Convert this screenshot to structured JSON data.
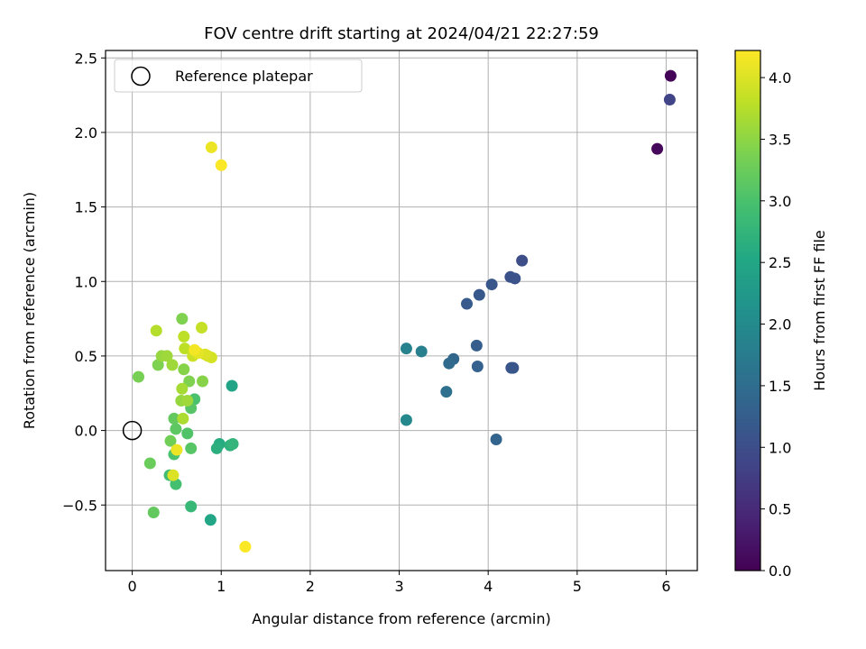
{
  "chart_data": {
    "type": "scatter",
    "title": "FOV centre drift starting at 2024/04/21 22:27:59",
    "xlabel": "Angular distance from reference (arcmin)",
    "ylabel": "Rotation from reference (arcmin)",
    "xlim": [
      -0.3,
      6.35
    ],
    "ylim": [
      -0.94,
      2.55
    ],
    "xticks": [
      0,
      1,
      2,
      3,
      4,
      5,
      6
    ],
    "xtick_labels": [
      "0",
      "1",
      "2",
      "3",
      "4",
      "5",
      "6"
    ],
    "yticks": [
      -0.5,
      0.0,
      0.5,
      1.0,
      1.5,
      2.0,
      2.5
    ],
    "ytick_labels": [
      "−0.5",
      "0.0",
      "0.5",
      "1.0",
      "1.5",
      "2.0",
      "2.5"
    ],
    "grid": true,
    "legend": {
      "placement": "top-left",
      "entries": [
        "Reference platepar"
      ]
    },
    "reference_point": {
      "x": 0,
      "y": 0
    },
    "colorbar": {
      "label": "Hours from first FF file",
      "range": [
        0.0,
        4.22
      ],
      "ticks": [
        0.0,
        0.5,
        1.0,
        1.5,
        2.0,
        2.5,
        3.0,
        3.5,
        4.0
      ],
      "tick_labels": [
        "0.0",
        "0.5",
        "1.0",
        "1.5",
        "2.0",
        "2.5",
        "3.0",
        "3.5",
        "4.0"
      ],
      "colormap": "viridis"
    },
    "points": [
      {
        "x": 6.05,
        "y": 2.38,
        "c": 0.05
      },
      {
        "x": 5.9,
        "y": 1.89,
        "c": 0.08
      },
      {
        "x": 6.04,
        "y": 2.22,
        "c": 0.85
      },
      {
        "x": 4.38,
        "y": 1.14,
        "c": 1.0
      },
      {
        "x": 4.25,
        "y": 1.03,
        "c": 1.05
      },
      {
        "x": 4.3,
        "y": 1.02,
        "c": 1.07
      },
      {
        "x": 4.04,
        "y": 0.98,
        "c": 1.12
      },
      {
        "x": 3.9,
        "y": 0.91,
        "c": 1.15
      },
      {
        "x": 3.76,
        "y": 0.85,
        "c": 1.2
      },
      {
        "x": 3.87,
        "y": 0.57,
        "c": 1.25
      },
      {
        "x": 3.88,
        "y": 0.43,
        "c": 1.3
      },
      {
        "x": 4.26,
        "y": 0.42,
        "c": 1.1
      },
      {
        "x": 4.28,
        "y": 0.42,
        "c": 1.12
      },
      {
        "x": 3.61,
        "y": 0.48,
        "c": 1.4
      },
      {
        "x": 3.56,
        "y": 0.45,
        "c": 1.45
      },
      {
        "x": 3.53,
        "y": 0.26,
        "c": 1.55
      },
      {
        "x": 4.09,
        "y": -0.06,
        "c": 1.35
      },
      {
        "x": 3.25,
        "y": 0.53,
        "c": 1.8
      },
      {
        "x": 3.08,
        "y": 0.55,
        "c": 1.85
      },
      {
        "x": 3.08,
        "y": 0.07,
        "c": 1.95
      },
      {
        "x": 1.12,
        "y": 0.3,
        "c": 2.45
      },
      {
        "x": 0.88,
        "y": -0.6,
        "c": 2.5
      },
      {
        "x": 0.98,
        "y": -0.09,
        "c": 2.6
      },
      {
        "x": 0.95,
        "y": -0.12,
        "c": 2.65
      },
      {
        "x": 1.1,
        "y": -0.1,
        "c": 2.7
      },
      {
        "x": 1.13,
        "y": -0.09,
        "c": 2.75
      },
      {
        "x": 0.66,
        "y": -0.51,
        "c": 2.8
      },
      {
        "x": 0.42,
        "y": -0.3,
        "c": 2.9
      },
      {
        "x": 0.49,
        "y": -0.36,
        "c": 2.95
      },
      {
        "x": 0.47,
        "y": -0.16,
        "c": 3.0
      },
      {
        "x": 0.62,
        "y": -0.02,
        "c": 3.05
      },
      {
        "x": 0.66,
        "y": -0.12,
        "c": 3.1
      },
      {
        "x": 0.7,
        "y": 0.21,
        "c": 3.0
      },
      {
        "x": 0.66,
        "y": 0.15,
        "c": 3.1
      },
      {
        "x": 0.49,
        "y": 0.01,
        "c": 3.15
      },
      {
        "x": 0.47,
        "y": 0.08,
        "c": 3.2
      },
      {
        "x": 0.24,
        "y": -0.55,
        "c": 3.2
      },
      {
        "x": 0.2,
        "y": -0.22,
        "c": 3.25
      },
      {
        "x": 0.43,
        "y": -0.07,
        "c": 3.3
      },
      {
        "x": 0.07,
        "y": 0.36,
        "c": 3.35
      },
      {
        "x": 0.29,
        "y": 0.44,
        "c": 3.4
      },
      {
        "x": 0.58,
        "y": 0.41,
        "c": 3.45
      },
      {
        "x": 0.64,
        "y": 0.33,
        "c": 3.4
      },
      {
        "x": 0.79,
        "y": 0.33,
        "c": 3.45
      },
      {
        "x": 0.56,
        "y": 0.75,
        "c": 3.4
      },
      {
        "x": 0.33,
        "y": 0.5,
        "c": 3.55
      },
      {
        "x": 0.39,
        "y": 0.5,
        "c": 3.6
      },
      {
        "x": 0.45,
        "y": 0.44,
        "c": 3.6
      },
      {
        "x": 0.55,
        "y": 0.2,
        "c": 3.55
      },
      {
        "x": 0.62,
        "y": 0.2,
        "c": 3.6
      },
      {
        "x": 0.56,
        "y": 0.28,
        "c": 3.65
      },
      {
        "x": 0.57,
        "y": 0.08,
        "c": 3.7
      },
      {
        "x": 0.27,
        "y": 0.67,
        "c": 3.75
      },
      {
        "x": 0.58,
        "y": 0.63,
        "c": 3.8
      },
      {
        "x": 0.59,
        "y": 0.55,
        "c": 3.8
      },
      {
        "x": 0.78,
        "y": 0.69,
        "c": 3.85
      },
      {
        "x": 0.68,
        "y": 0.5,
        "c": 3.9
      },
      {
        "x": 0.85,
        "y": 0.5,
        "c": 3.9
      },
      {
        "x": 0.89,
        "y": 0.49,
        "c": 3.95
      },
      {
        "x": 0.82,
        "y": 0.51,
        "c": 4.0
      },
      {
        "x": 0.74,
        "y": 0.52,
        "c": 4.05
      },
      {
        "x": 0.46,
        "y": -0.3,
        "c": 4.0
      },
      {
        "x": 0.5,
        "y": -0.13,
        "c": 4.1
      },
      {
        "x": 0.7,
        "y": 0.54,
        "c": 4.15
      },
      {
        "x": 0.89,
        "y": 1.9,
        "c": 4.1
      },
      {
        "x": 1.0,
        "y": 1.78,
        "c": 4.2
      },
      {
        "x": 1.27,
        "y": -0.78,
        "c": 4.2
      }
    ]
  }
}
